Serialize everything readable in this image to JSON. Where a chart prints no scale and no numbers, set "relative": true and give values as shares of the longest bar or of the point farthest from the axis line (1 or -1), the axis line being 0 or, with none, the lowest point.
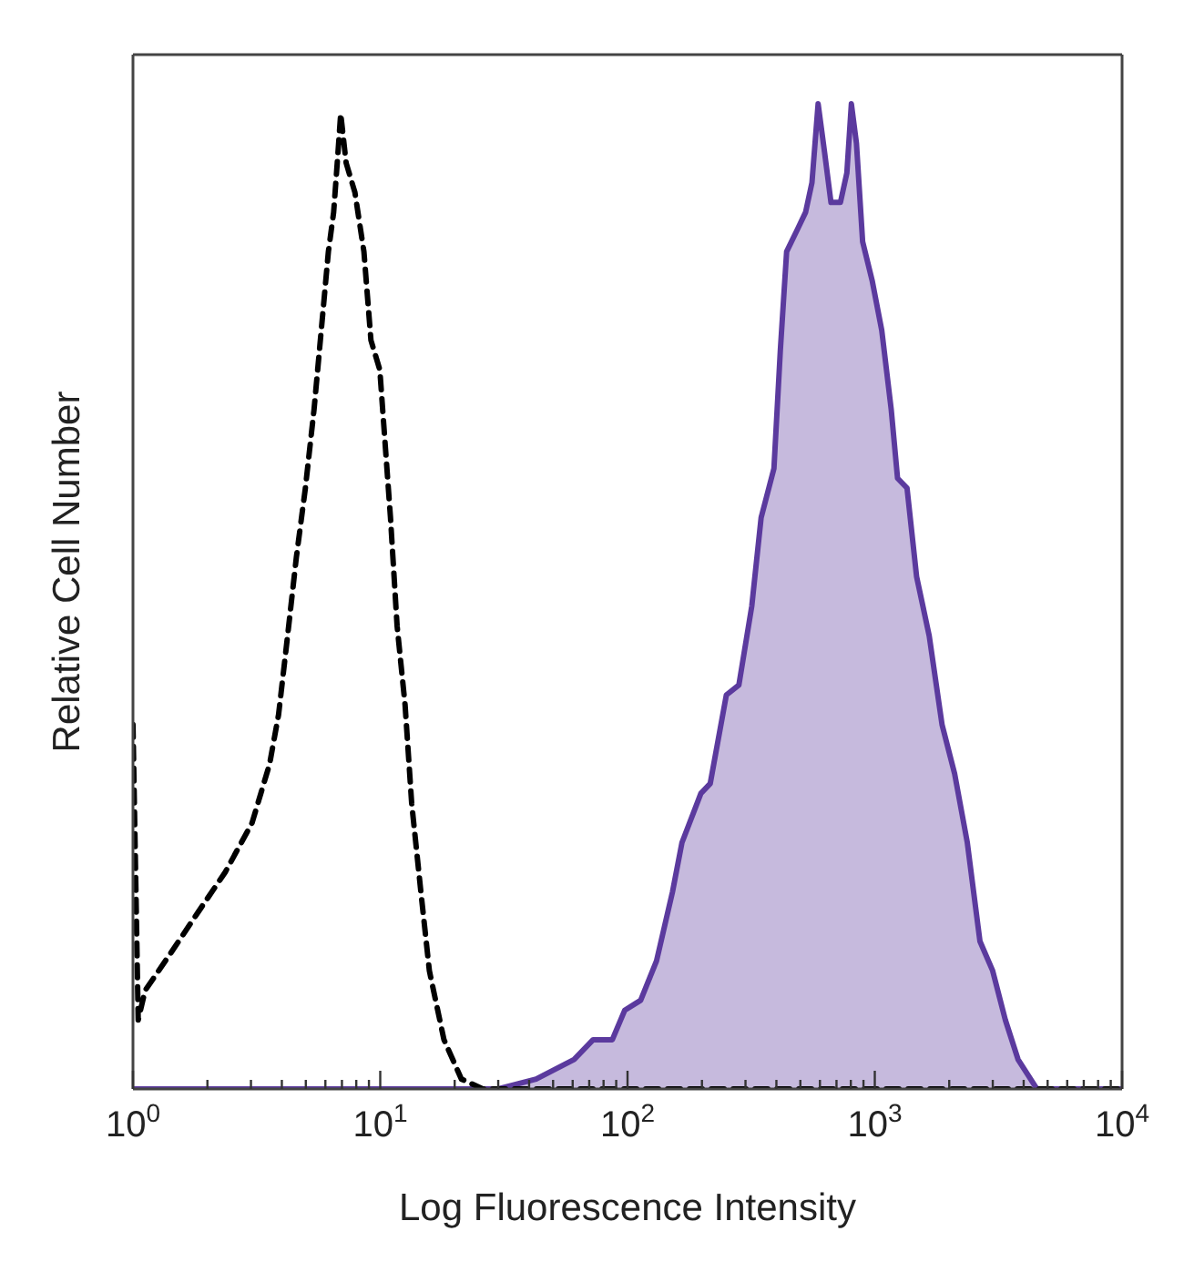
{
  "chart_data": {
    "type": "area",
    "relative": true,
    "log": "x",
    "xlabel": "Log Fluorescence Intensity",
    "ylabel": "Relative Cell Number",
    "xlim": [
      1,
      10000
    ],
    "xticks": [
      {
        "value": 1,
        "label": "10$^{0}$"
      },
      {
        "value": 2,
        "label": null
      },
      {
        "value": 3,
        "label": null
      },
      {
        "value": 4,
        "label": null
      },
      {
        "value": 5,
        "label": null
      },
      {
        "value": 6,
        "label": null
      },
      {
        "value": 7,
        "label": null
      },
      {
        "value": 8,
        "label": null
      },
      {
        "value": 9,
        "label": null
      },
      {
        "value": 10,
        "label": "10$^{1}$"
      },
      {
        "value": 20,
        "label": null
      },
      {
        "value": 30,
        "label": null
      },
      {
        "value": 40,
        "label": null
      },
      {
        "value": 50,
        "label": null
      },
      {
        "value": 60,
        "label": null
      },
      {
        "value": 70,
        "label": null
      },
      {
        "value": 80,
        "label": null
      },
      {
        "value": 90,
        "label": null
      },
      {
        "value": 100,
        "label": "10$^{2}$"
      },
      {
        "value": 200,
        "label": null
      },
      {
        "value": 300,
        "label": null
      },
      {
        "value": 400,
        "label": null
      },
      {
        "value": 500,
        "label": null
      },
      {
        "value": 600,
        "label": null
      },
      {
        "value": 700,
        "label": null
      },
      {
        "value": 800,
        "label": null
      },
      {
        "value": 900,
        "label": null
      },
      {
        "value": 1000,
        "label": "10$^{3}$"
      },
      {
        "value": 2000,
        "label": null
      },
      {
        "value": 3000,
        "label": null
      },
      {
        "value": 4000,
        "label": null
      },
      {
        "value": 5000,
        "label": null
      },
      {
        "value": 6000,
        "label": null
      },
      {
        "value": 7000,
        "label": null
      },
      {
        "value": 8000,
        "label": null
      },
      {
        "value": 9000,
        "label": null
      },
      {
        "value": 10000,
        "label": "10$^{4}$"
      }
    ],
    "grid": false,
    "legend": false,
    "marker": "none",
    "series": [
      {
        "type": "line",
        "line_style": "dashed",
        "color": "#000000",
        "x": [
          1,
          1.05,
          1.12,
          1.44,
          1.84,
          2.36,
          3.03,
          3.57,
          3.88,
          4.22,
          4.58,
          4.98,
          5.4,
          5.87,
          6.17,
          6.48,
          6.7,
          6.92,
          7.28,
          7.9,
          8.59,
          9.17,
          9.96,
          10.5,
          11,
          11.7,
          12.6,
          13.4,
          14.6,
          15.8,
          18.1,
          21.3,
          26,
          30.7,
          10000
        ],
        "values": [
          0.37,
          0.07,
          0.1,
          0.14,
          0.18,
          0.22,
          0.27,
          0.33,
          0.38,
          0.46,
          0.54,
          0.61,
          0.69,
          0.79,
          0.85,
          0.89,
          0.94,
          0.99,
          0.94,
          0.91,
          0.85,
          0.76,
          0.73,
          0.65,
          0.58,
          0.47,
          0.39,
          0.29,
          0.2,
          0.12,
          0.05,
          0.01,
          0,
          0,
          0
        ]
      },
      {
        "line_style": "solid",
        "color": "#5b3a9e",
        "x": [
          1,
          30,
          42.7,
          60.8,
          72.6,
          86.8,
          97.5,
          113,
          131,
          152,
          166,
          198,
          216,
          251,
          282,
          318,
          347,
          391,
          415,
          440,
          481,
          525,
          557,
          590,
          627,
          665,
          726,
          771,
          804,
          843,
          893,
          977,
          1067,
          1165,
          1236,
          1350,
          1476,
          1660,
          1870,
          2103,
          2367,
          2662,
          2997,
          3373,
          3796,
          4529,
          5419,
          10000
        ],
        "values": [
          0,
          0,
          0.01,
          0.03,
          0.05,
          0.05,
          0.08,
          0.09,
          0.13,
          0.2,
          0.25,
          0.3,
          0.31,
          0.4,
          0.41,
          0.49,
          0.58,
          0.63,
          0.75,
          0.85,
          0.87,
          0.89,
          0.92,
          1,
          0.95,
          0.9,
          0.9,
          0.93,
          1,
          0.96,
          0.86,
          0.82,
          0.77,
          0.69,
          0.62,
          0.61,
          0.52,
          0.46,
          0.37,
          0.32,
          0.25,
          0.15,
          0.12,
          0.07,
          0.03,
          0,
          0,
          0
        ]
      }
    ]
  }
}
